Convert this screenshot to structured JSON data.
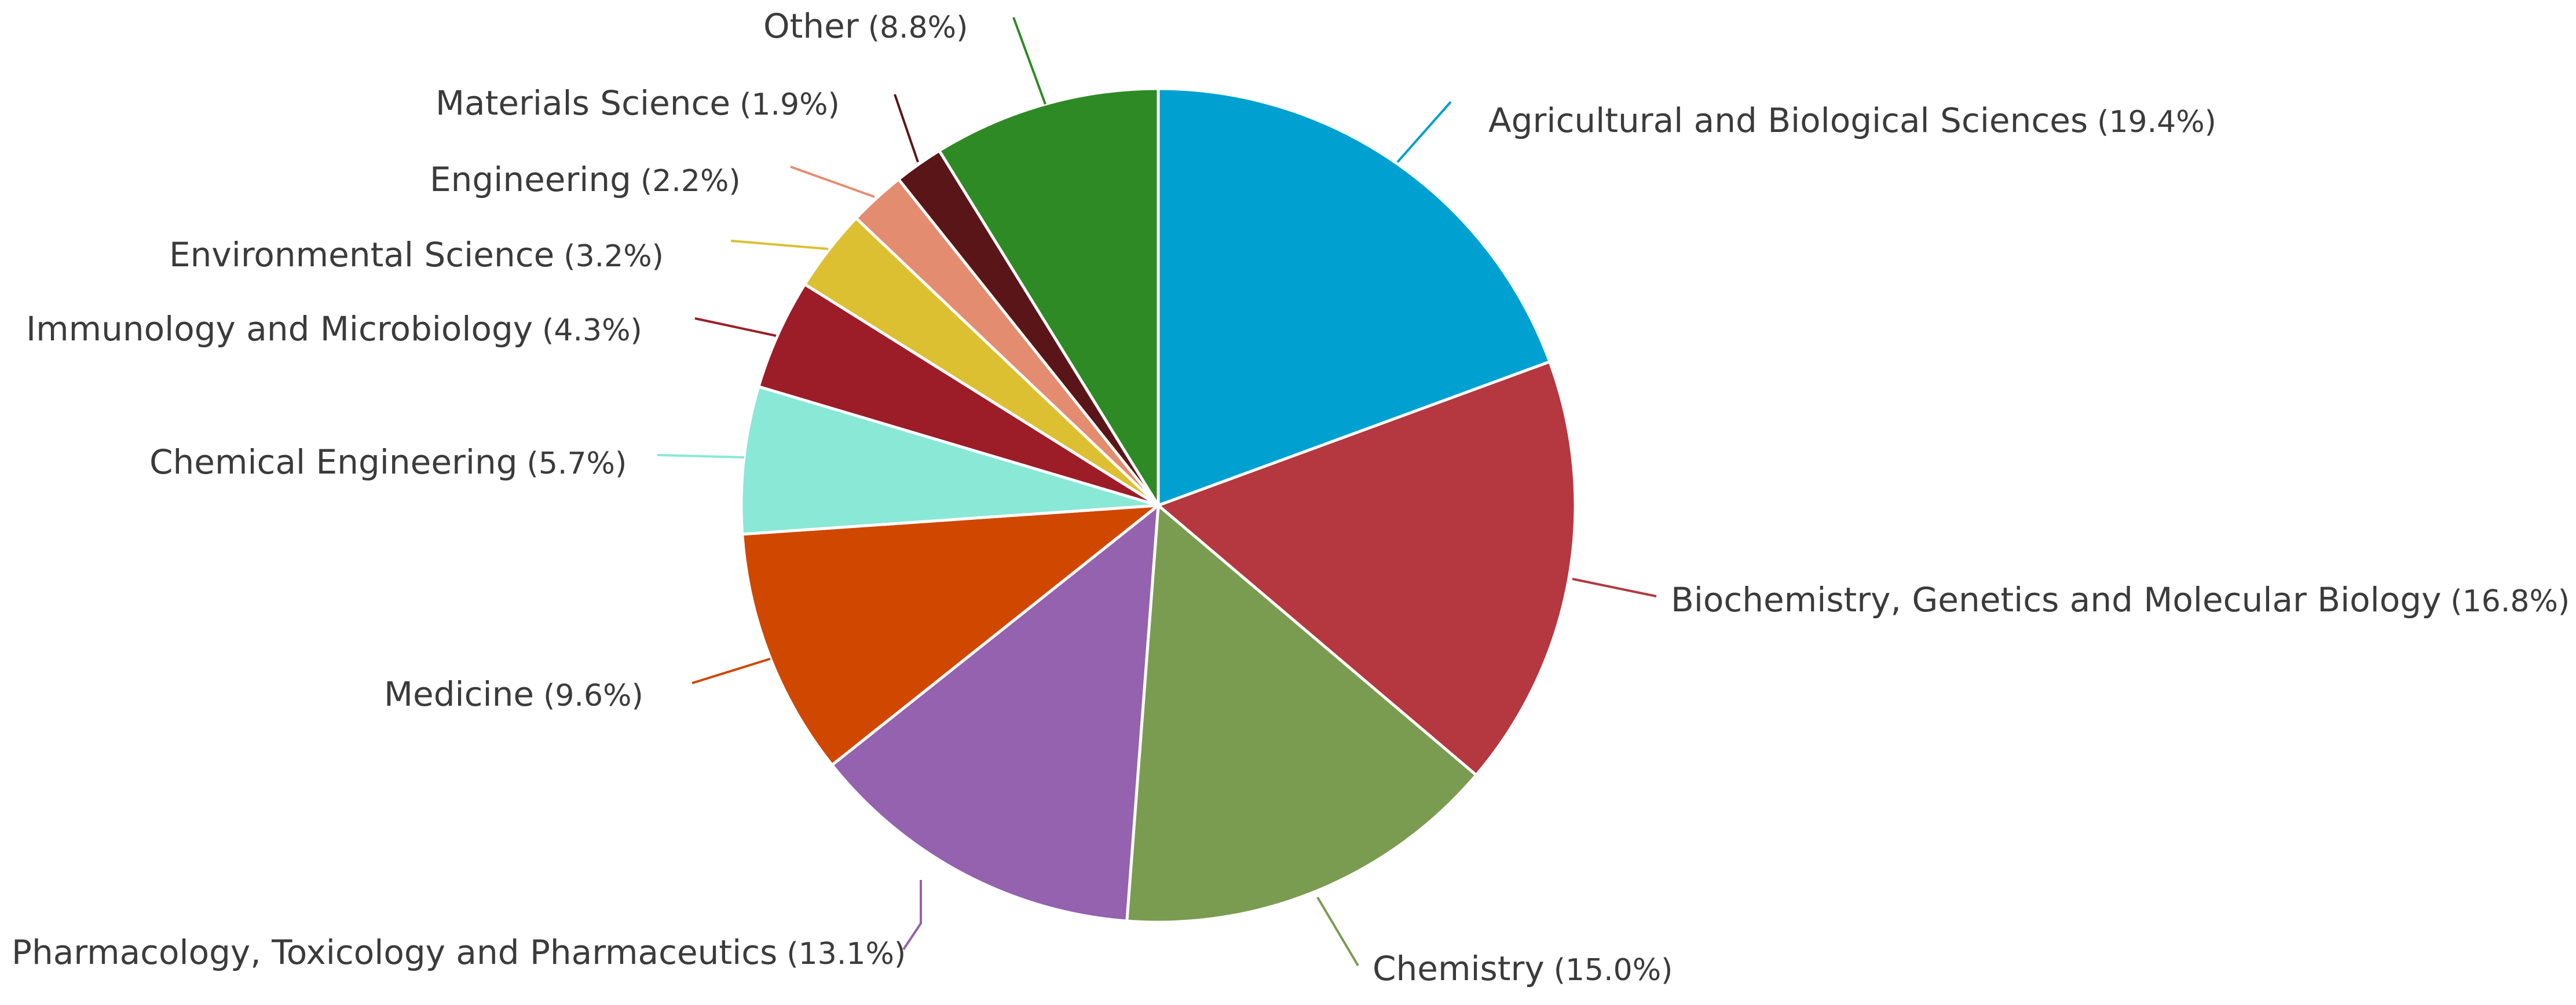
{
  "chart_data": {
    "type": "pie",
    "title": "",
    "start_angle_deg": 0,
    "direction": "clockwise",
    "slices": [
      {
        "label": "Agricultural and Biological Sciences",
        "value": 19.4,
        "value_text": "(19.4%)",
        "color": "#00a0d0"
      },
      {
        "label": "Biochemistry, Genetics and Molecular Biology",
        "value": 16.8,
        "value_text": "(16.8%)",
        "color": "#b5373f"
      },
      {
        "label": "Chemistry",
        "value": 15.0,
        "value_text": "(15.0%)",
        "color": "#7a9c50"
      },
      {
        "label": "Pharmacology, Toxicology and Pharmaceutics",
        "value": 13.1,
        "value_text": "(13.1%)",
        "color": "#9462ae"
      },
      {
        "label": "Medicine",
        "value": 9.6,
        "value_text": "(9.6%)",
        "color": "#d04700"
      },
      {
        "label": "Chemical Engineering",
        "value": 5.7,
        "value_text": "(5.7%)",
        "color": "#8ae8d6"
      },
      {
        "label": "Immunology and Microbiology",
        "value": 4.3,
        "value_text": "(4.3%)",
        "color": "#9c1d27"
      },
      {
        "label": "Environmental Science",
        "value": 3.2,
        "value_text": "(3.2%)",
        "color": "#dcc032"
      },
      {
        "label": "Engineering",
        "value": 2.2,
        "value_text": "(2.2%)",
        "color": "#e48c70"
      },
      {
        "label": "Materials Science",
        "value": 1.9,
        "value_text": "(1.9%)",
        "color": "#5a1518"
      },
      {
        "label": "Other",
        "value": 8.8,
        "value_text": "(8.8%)",
        "color": "#2e8a24"
      }
    ]
  }
}
